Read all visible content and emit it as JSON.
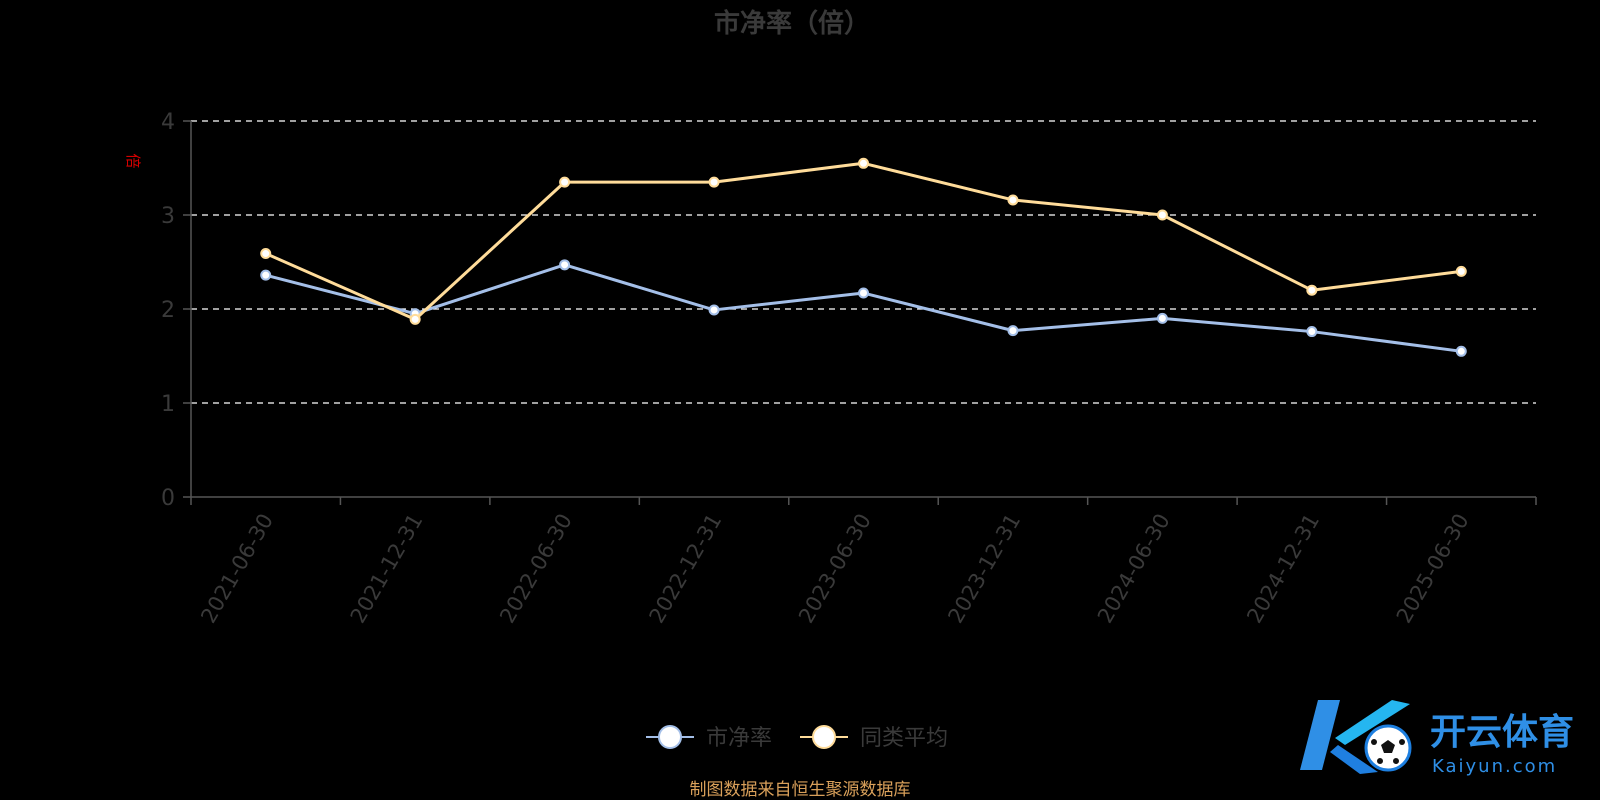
{
  "chart_data": {
    "type": "line",
    "title": "市净率（倍）",
    "ylabel": "倍",
    "ylim": [
      0,
      4
    ],
    "yticks": [
      "0",
      "1",
      "2",
      "3",
      "4"
    ],
    "grid": true,
    "legend_position": "bottom-center",
    "categories": [
      "2021-06-30",
      "2021-12-31",
      "2022-06-30",
      "2022-12-31",
      "2023-06-30",
      "2023-12-31",
      "2024-06-30",
      "2024-12-31",
      "2025-06-30"
    ],
    "series": [
      {
        "name": "市净率",
        "color": "#a4bfe8",
        "values": [
          2.36,
          1.95,
          2.47,
          1.99,
          2.17,
          1.77,
          1.9,
          1.76,
          1.55
        ]
      },
      {
        "name": "同类平均",
        "color": "#ffdc9a",
        "values": [
          2.59,
          1.89,
          3.35,
          3.35,
          3.55,
          3.16,
          3.0,
          2.2,
          2.4
        ]
      }
    ],
    "source": "制图数据来自恒生聚源数据库"
  },
  "logo": {
    "icon": "kaiyun-k-ball-logo",
    "brand": "开云体育",
    "site": "Kaiyun.com"
  }
}
